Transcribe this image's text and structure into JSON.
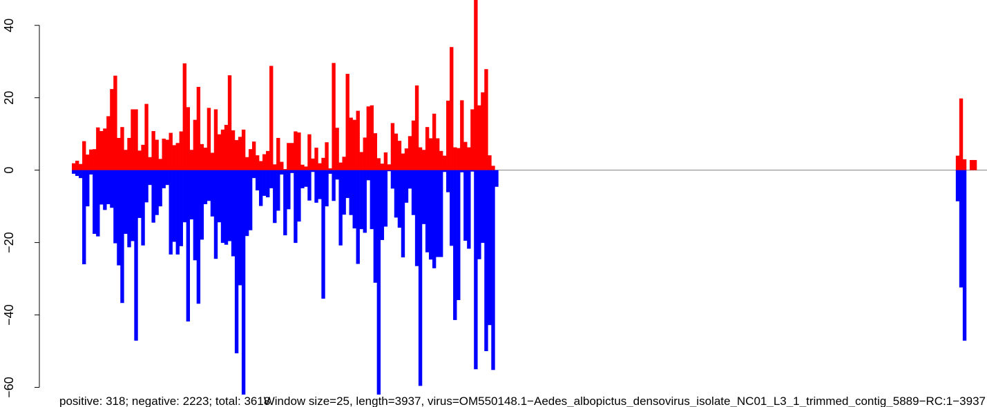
{
  "chart_data": {
    "type": "bar",
    "title": "",
    "xlabel": "",
    "ylabel": "",
    "ylim": [
      -62,
      47
    ],
    "y_ticks": [
      -60,
      -40,
      -20,
      0,
      20,
      40
    ],
    "y_tick_labels": [
      "−60",
      "−40",
      "−20",
      "0",
      "20",
      "40"
    ],
    "captions": [
      "Window size=25, length=3937, virus=OM550148.1−Aedes_albopictus_densovirus_isolate_NC01_L3_1_trimmed_contig_5889−RC:1−3937",
      "positive: 318; negative: 2223; total: 3618"
    ],
    "n_windows": 264,
    "series": [
      {
        "name": "",
        "color": "#ff0000",
        "start_index": 0,
        "values": [
          1.9,
          2.6,
          1.7,
          8.0,
          4.3,
          5.7,
          5.8,
          11.8,
          10.8,
          11.5,
          14.9,
          22.4,
          26.1,
          8.9,
          11.9,
          5.6,
          8.9,
          16.8,
          16.8,
          5.4,
          7.0,
          18.3,
          3.6,
          10.8,
          8.4,
          3.1,
          8.7,
          8.4,
          10.3,
          6.9,
          7.5,
          10.7,
          29.5,
          17.4,
          5.6,
          13.9,
          23.0,
          7.2,
          6.2,
          17.2,
          4.8,
          16.8,
          9.9,
          11.2,
          12.5,
          26.2,
          11.0,
          8.3,
          9.2,
          11.2,
          3.6,
          5.8,
          7.9,
          4.1,
          2.5,
          4.4,
          5.3,
          28.8,
          1.6,
          8.9,
          2.3,
          0.3,
          7.5,
          7.5,
          10.7,
          10.4,
          1.5,
          1.0,
          9.9,
          3.2,
          6.2,
          1.9,
          3.4,
          7.7,
          0.5,
          29.6,
          11.7,
          2.1,
          3.7,
          26.6,
          14.5,
          13.9,
          16.4,
          5.0,
          9.0,
          17.6,
          17.9,
          10.2,
          3.3,
          1.8,
          4.9,
          1.6,
          13.0,
          10.1,
          8.1,
          4.6,
          6.0,
          9.4,
          13.7,
          23.4,
          6.3,
          5.6,
          11.9,
          8.8,
          15.6,
          8.8,
          5.3,
          4.0,
          19.2,
          34.0,
          6.3,
          6.1,
          19.3,
          7.8,
          6.3,
          16.8,
          47.0,
          17.9,
          21.5,
          27.9,
          4.1,
          1.2
        ]
      },
      {
        "name": "",
        "color": "#ff0000",
        "start_index": 255,
        "values": [
          4.0,
          19.8,
          3.0,
          0,
          2.8,
          2.8
        ]
      },
      {
        "name": "",
        "color": "#0000ff",
        "start_index": 0,
        "values": [
          -1.0,
          -1.6,
          -2.2,
          -26.0,
          -10.0,
          -1.2,
          -17.6,
          -18.3,
          -9.5,
          -11.0,
          -9.4,
          -10.4,
          -20.2,
          -26.3,
          -36.7,
          -17.6,
          -21.3,
          -19.6,
          -47.1,
          -13.2,
          -20.8,
          -8.9,
          -4.1,
          -14.5,
          -12.4,
          -10.0,
          -5.0,
          -4.1,
          -23.3,
          -19.8,
          -23.3,
          -21.0,
          -14.4,
          -41.8,
          -13.6,
          -24.9,
          -36.9,
          -19.2,
          -9.4,
          -8.5,
          -12.8,
          -24.5,
          -14.4,
          -20.1,
          -20.6,
          -19.6,
          -23.8,
          -50.6,
          -31.8,
          -62.0,
          -18.2,
          -16.6,
          -2.2,
          -5.6,
          -9.9,
          -7.1,
          -7.5,
          -5.0,
          -14.6,
          -11.2,
          -1.2,
          -18.0,
          -10.8,
          -0.8,
          -20.1,
          -14.2,
          -5.0,
          -4.6,
          -8.4,
          -0.5,
          -9.0,
          -8.0,
          -35.5,
          -10.0,
          -1.0,
          -8.5,
          -2.6,
          -20.8,
          -12.3,
          -7.7,
          -12.4,
          -16.1,
          -25.9,
          -16.3,
          -17.3,
          -2.8,
          -16.3,
          -31.1,
          -62.0,
          -19.3,
          -15.6,
          -0.3,
          -5.1,
          -13.1,
          -15.9,
          -24.1,
          -9.0,
          -5.1,
          -12.4,
          -26.5,
          -59.6,
          -14.9,
          -22.7,
          -24.7,
          -27.1,
          -24.0,
          -24.0,
          -0.5,
          -6.1,
          -20.9,
          -41.4,
          -35.9,
          -0.6,
          -19.5,
          -21.7,
          -0.4,
          -55.0,
          -24.6,
          -20.1,
          -50.0,
          -42.8,
          -55.2,
          -4.6
        ]
      },
      {
        "name": "",
        "color": "#0000ff",
        "start_index": 255,
        "values": [
          -8.6,
          -32.4,
          -47.1,
          0,
          0,
          0
        ]
      }
    ],
    "baseline": 0,
    "baseline_color": "#808080"
  }
}
